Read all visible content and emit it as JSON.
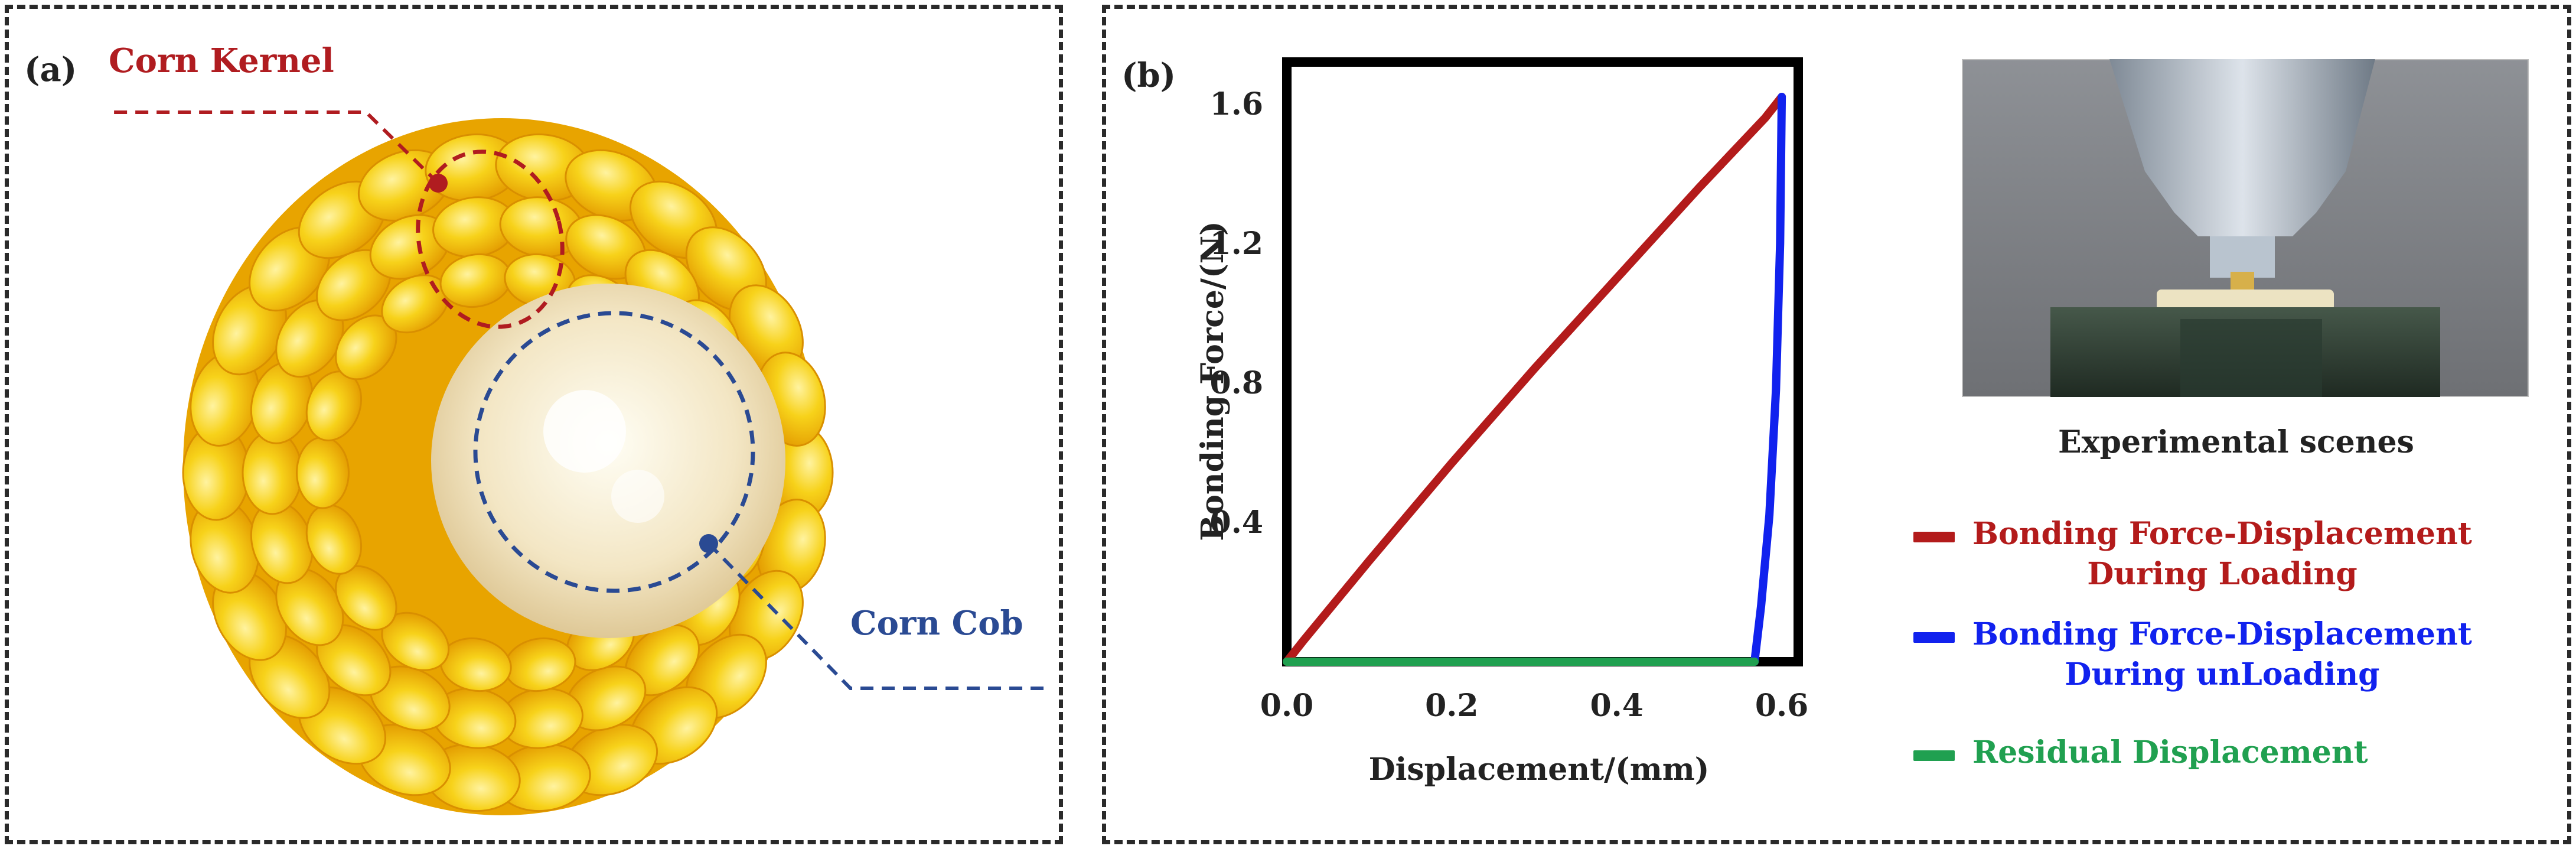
{
  "panel_a": {
    "label": "(a)",
    "kernel_label": "Corn Kernel",
    "cob_label": "Corn Cob",
    "kernel_color": "#b01c20",
    "cob_color": "#2a4a93"
  },
  "panel_b": {
    "label": "(b)",
    "photo_caption": "Experimental scenes"
  },
  "chart_data": {
    "type": "line",
    "title": "",
    "xlabel": "Displacement/(mm)",
    "ylabel": "Bonding Force/(N)",
    "xlim": [
      0.0,
      0.62
    ],
    "ylim": [
      0.0,
      1.72
    ],
    "x_ticks": [
      "0.0",
      "0.2",
      "0.4",
      "0.6"
    ],
    "x_tick_values": [
      0.0,
      0.2,
      0.4,
      0.6
    ],
    "y_ticks": [
      "0.4",
      "0.8",
      "1.2",
      "1.6"
    ],
    "y_tick_values": [
      0.4,
      0.8,
      1.2,
      1.6
    ],
    "grid": false,
    "legend_position": "right",
    "series": [
      {
        "name": "Bonding Force-Displacement During Loading",
        "label_lines": [
          "Bonding Force-Displacement",
          "During Loading"
        ],
        "color": "#b31b1b",
        "x": [
          0.0,
          0.02,
          0.1,
          0.2,
          0.3,
          0.4,
          0.5,
          0.58,
          0.6
        ],
        "y": [
          0.0,
          0.06,
          0.29,
          0.57,
          0.84,
          1.1,
          1.36,
          1.56,
          1.62
        ]
      },
      {
        "name": "Bonding Force-Displacement During unLoading",
        "label_lines": [
          "Bonding Force-Displacement",
          "During unLoading"
        ],
        "color": "#1122ee",
        "x": [
          0.567,
          0.575,
          0.585,
          0.593,
          0.598,
          0.6
        ],
        "y": [
          0.0,
          0.16,
          0.42,
          0.78,
          1.2,
          1.62
        ]
      },
      {
        "name": "Residual Displacement",
        "label_lines": [
          "Residual Displacement"
        ],
        "color": "#20a050",
        "x": [
          0.0,
          0.567
        ],
        "y": [
          0.0,
          0.0
        ]
      }
    ]
  }
}
